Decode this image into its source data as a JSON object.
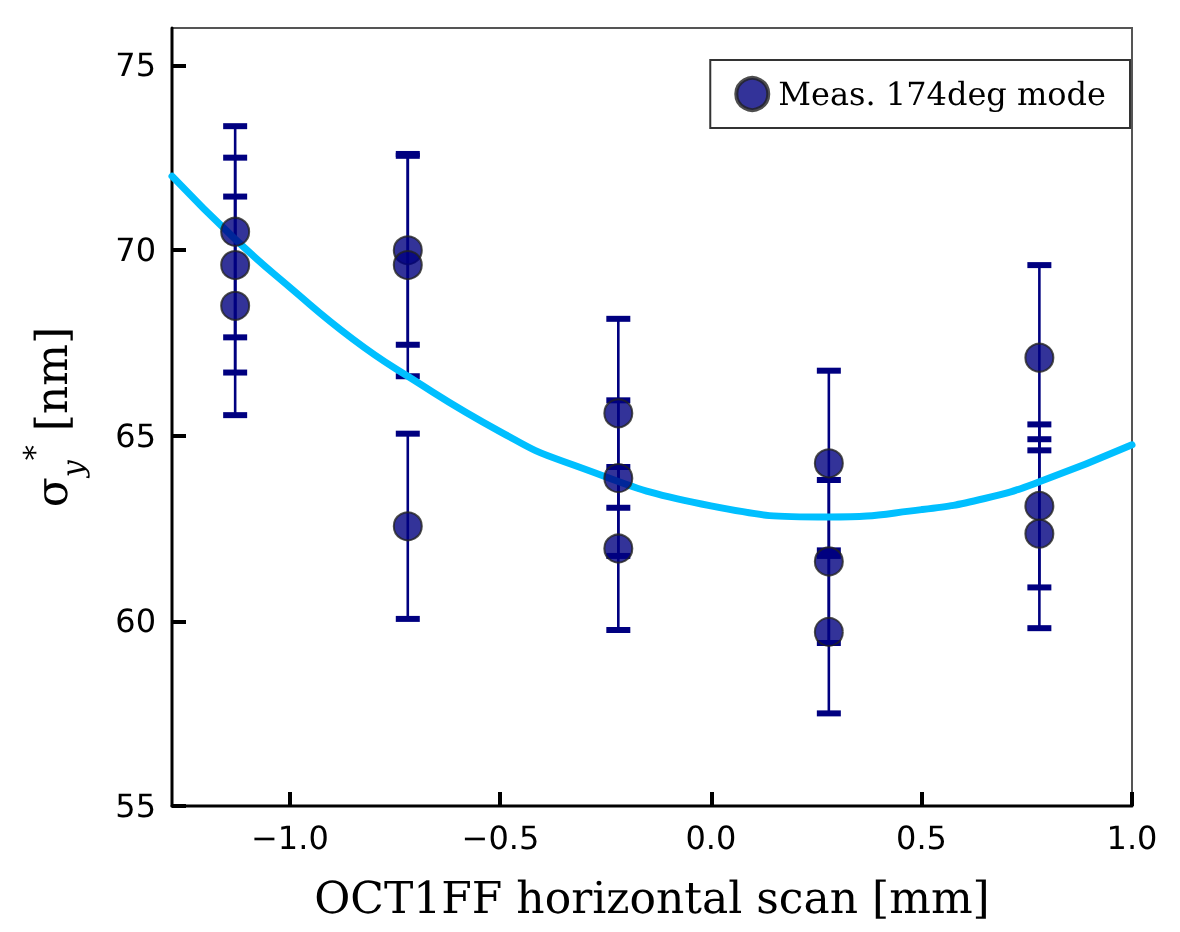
{
  "chart_data": {
    "type": "scatter",
    "xlabel": "OCT1FF horizontal scan [mm]",
    "ylabel": "σ$_{y}$$^{*}$ [nm]",
    "xlim": [
      -1.28,
      1.0
    ],
    "ylim": [
      55,
      76
    ],
    "xticks": [
      {
        "value": -1.0,
        "label": "−1.0"
      },
      {
        "value": -0.5,
        "label": "−0.5"
      },
      {
        "value": 0,
        "label": "0.0"
      },
      {
        "value": 0.5,
        "label": "0.5"
      },
      {
        "value": 1.0,
        "label": "1.0"
      }
    ],
    "yticks": [
      55,
      60,
      65,
      70,
      75
    ],
    "grid": false,
    "legend": "top right",
    "marker": "circle",
    "series": [
      {
        "name": "Meas. 174deg mode",
        "type": "scatter",
        "color": "#000080",
        "x": [
          -1.13,
          -1.13,
          -1.13,
          -0.72,
          -0.72,
          -0.72,
          -0.22,
          -0.22,
          -0.22,
          0.28,
          0.28,
          0.28,
          0.78,
          0.78,
          0.78
        ],
        "values": [
          70.5,
          69.6,
          68.5,
          70.0,
          69.6,
          62.55,
          65.6,
          63.85,
          61.95,
          64.25,
          61.6,
          59.7,
          67.1,
          63.1,
          62.35
        ],
        "errors": [
          2.85,
          2.9,
          2.95,
          2.55,
          3.0,
          2.5,
          2.55,
          2.1,
          2.2,
          2.5,
          2.2,
          2.2,
          2.5,
          2.2,
          2.55
        ]
      },
      {
        "type": "line",
        "color": "#00bfff",
        "marker": "none",
        "x": [
          -1.28,
          -1.13,
          -1.0,
          -0.85,
          -0.72,
          -0.5,
          -0.35,
          0.0,
          0.28,
          0.5,
          0.65,
          0.78,
          1.0
        ],
        "values": [
          72.0,
          70.3,
          69.0,
          67.6,
          66.6,
          65.1,
          64.3,
          63.1,
          62.8,
          63.0,
          63.3,
          63.75,
          64.75
        ]
      }
    ]
  }
}
